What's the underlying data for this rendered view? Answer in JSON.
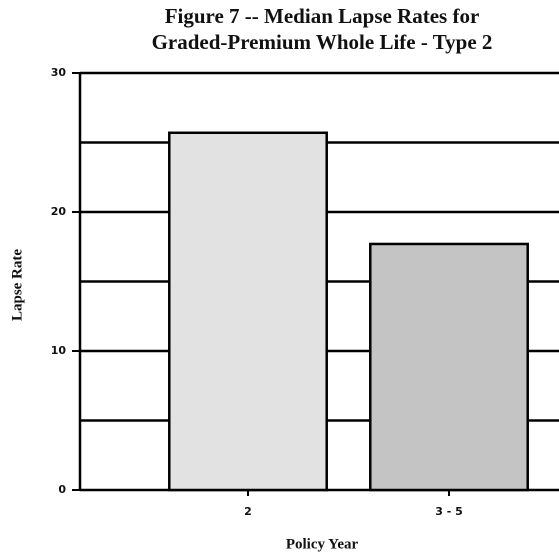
{
  "chart_data": {
    "type": "bar",
    "title": [
      "Figure 7 -- Median Lapse Rates for",
      "Graded-Premium Whole Life - Type 2"
    ],
    "x_label": "Policy Year",
    "y_label": "Lapse Rate",
    "categories": [
      "2",
      "3 - 5"
    ],
    "values": [
      25.7,
      17.7
    ],
    "colors": [
      "#e2e2e2",
      "#c4c4c4"
    ],
    "ylim": [
      0,
      30
    ],
    "yticks": [
      0,
      10,
      20,
      30
    ],
    "minor_yticks": [
      5,
      15,
      25
    ],
    "grid": true
  }
}
